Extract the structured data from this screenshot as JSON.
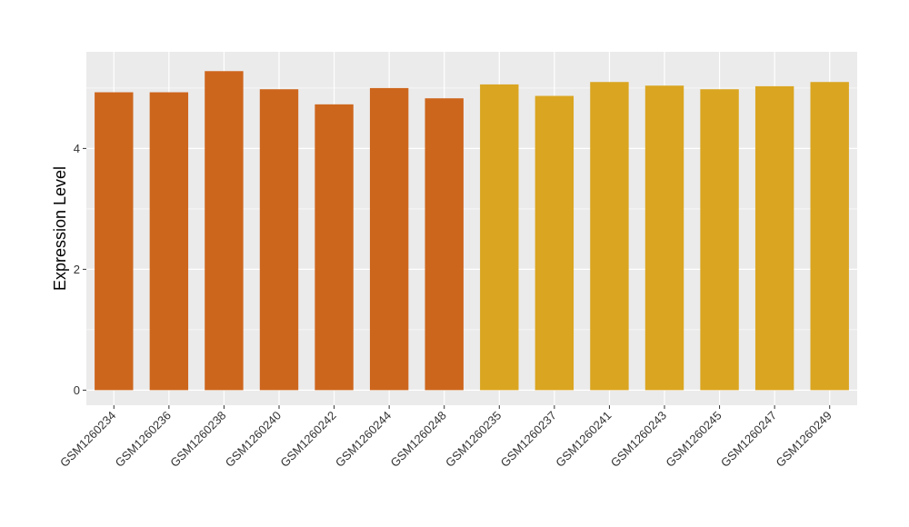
{
  "chart_data": {
    "type": "bar",
    "ylabel": "Expression Level",
    "xlabel": "",
    "ylim": [
      -0.25,
      5.6
    ],
    "yticks": [
      0,
      2,
      4
    ],
    "grid": true,
    "panel_background": "#EBEBEB",
    "gridline_color": "#FFFFFF",
    "categories": [
      "GSM1260234",
      "GSM1260236",
      "GSM1260238",
      "GSM1260240",
      "GSM1260242",
      "GSM1260244",
      "GSM1260248",
      "GSM1260235",
      "GSM1260237",
      "GSM1260241",
      "GSM1260243",
      "GSM1260245",
      "GSM1260247",
      "GSM1260249"
    ],
    "values": [
      4.93,
      4.93,
      5.28,
      4.98,
      4.73,
      5.0,
      4.83,
      5.06,
      4.87,
      5.1,
      5.04,
      4.98,
      5.03,
      5.1
    ],
    "bar_colors": [
      "#CD661D",
      "#CD661D",
      "#CD661D",
      "#CD661D",
      "#CD661D",
      "#CD661D",
      "#CD661D",
      "#DAA520",
      "#DAA520",
      "#DAA520",
      "#DAA520",
      "#DAA520",
      "#DAA520",
      "#DAA520"
    ]
  }
}
